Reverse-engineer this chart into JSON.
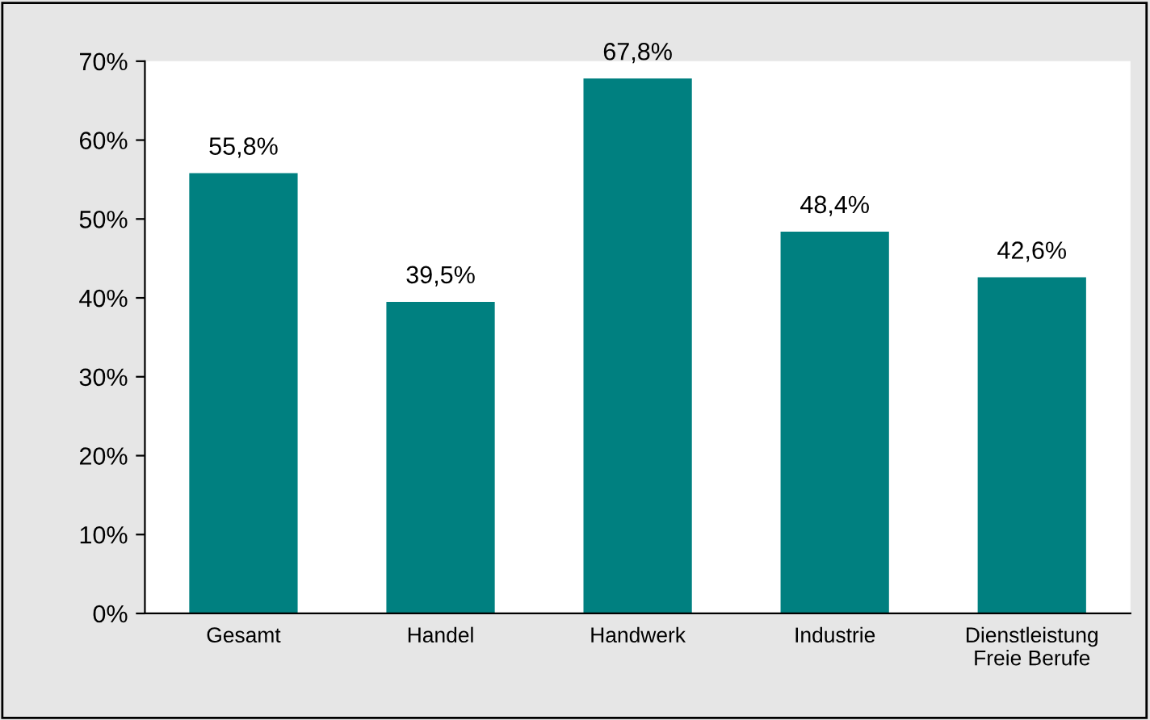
{
  "chart_data": {
    "type": "bar",
    "categories": [
      "Gesamt",
      "Handel",
      "Handwerk",
      "Industrie",
      "Dienstleistung\nFreie Berufe"
    ],
    "values": [
      55.8,
      39.5,
      67.8,
      48.4,
      42.6
    ],
    "color": "#008080",
    "value_labels": [
      "55,8%",
      "39,5%",
      "67,8%",
      "48,4%",
      "42,6%"
    ],
    "ylim": [
      0,
      70
    ],
    "yticks": [
      {
        "value": 0,
        "label": "0%"
      },
      {
        "value": 10,
        "label": "10%"
      },
      {
        "value": 20,
        "label": "20%"
      },
      {
        "value": 30,
        "label": "30%"
      },
      {
        "value": 40,
        "label": "40%"
      },
      {
        "value": 50,
        "label": "50%"
      },
      {
        "value": 60,
        "label": "60%"
      },
      {
        "value": 70,
        "label": "70%"
      }
    ],
    "grid": false
  }
}
